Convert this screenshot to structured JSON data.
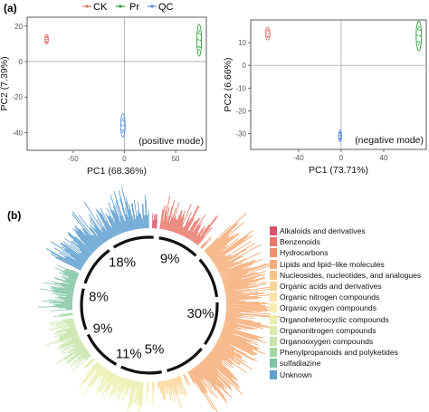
{
  "figure": {
    "panel_a_label": "(a)",
    "panel_b_label": "(b)",
    "top_legend": [
      {
        "name": "CK",
        "color": "#e8776d"
      },
      {
        "name": "Pr",
        "color": "#2e9e3a"
      },
      {
        "name": "QC",
        "color": "#5a8fd8"
      }
    ]
  },
  "chart_data": [
    {
      "type": "scatter",
      "panel": "a-left",
      "annotation": "(positive mode)",
      "xlabel": "PC1 (68.36%)",
      "ylabel": "PC2 (7.39%)",
      "xlim": [
        -95,
        80
      ],
      "ylim": [
        -50,
        25
      ],
      "xticks": [
        -50,
        0,
        50
      ],
      "yticks": [
        20,
        0,
        -20,
        -40
      ],
      "grid": false,
      "series": [
        {
          "name": "CK",
          "color": "#e8776d",
          "ellipse": {
            "cx": -76,
            "cy": 12.5,
            "rx": 1.8,
            "ry": 2.8
          }
        },
        {
          "name": "Pr",
          "color": "#2e9e3a",
          "ellipse": {
            "cx": 73,
            "cy": 12,
            "rx": 2.2,
            "ry": 9
          }
        },
        {
          "name": "QC",
          "color": "#5a8fd8",
          "ellipse": {
            "cx": -1.5,
            "cy": -36,
            "rx": 2.2,
            "ry": 6.5
          }
        }
      ]
    },
    {
      "type": "scatter",
      "panel": "a-right",
      "annotation": "(negative mode)",
      "xlabel": "PC1 (73.71%)",
      "ylabel": "PC2 (6.66%)",
      "xlim": [
        -85,
        80
      ],
      "ylim": [
        -37,
        20
      ],
      "xticks": [
        -40,
        0,
        40
      ],
      "yticks": [
        10,
        0,
        -10,
        -20,
        -30
      ],
      "grid": false,
      "series": [
        {
          "name": "CK",
          "color": "#e8776d",
          "ellipse": {
            "cx": -69,
            "cy": 14,
            "rx": 2.2,
            "ry": 2.8
          }
        },
        {
          "name": "Pr",
          "color": "#2e9e3a",
          "ellipse": {
            "cx": 73,
            "cy": 13,
            "rx": 2.5,
            "ry": 6.5
          }
        },
        {
          "name": "QC",
          "color": "#5a8fd8",
          "ellipse": {
            "cx": -1,
            "cy": -31,
            "rx": 1.5,
            "ry": 2.5
          }
        }
      ]
    },
    {
      "type": "bar",
      "panel": "b",
      "layout": "circular",
      "categories": [
        "Alkaloids and derivatives",
        "Benzenoids",
        "Hydrocarbons",
        "Lipids and lipid−like molecules",
        "Nucleosides, nucleotides, and analogues",
        "Organic acids and derivatives",
        "Organic nitrogen compounds",
        "Organic oxygen compounds",
        "Organoheterocyclic compounds",
        "Organonitrogen compounds",
        "Organooxygen compounds",
        "Phenylpropanoids and polyketides",
        "sulfadiazine",
        "Unknown"
      ],
      "colors": [
        "#d9546a",
        "#e8766a",
        "#f2926b",
        "#f6ad77",
        "#f8c386",
        "#fbd597",
        "#fce2a6",
        "#f7edb0",
        "#ebefab",
        "#dcecaa",
        "#c6e4a7",
        "#a4d6a4",
        "#7ec4a3",
        "#5e9fd0"
      ],
      "shares_percent": [
        1,
        9,
        0.5,
        30,
        0.5,
        5,
        0.5,
        0.5,
        11,
        0.5,
        9,
        0.5,
        8,
        18
      ],
      "ring_labels": [
        "9%",
        "30%",
        "5%",
        "11%",
        "9%",
        "8%",
        "18%"
      ]
    }
  ]
}
